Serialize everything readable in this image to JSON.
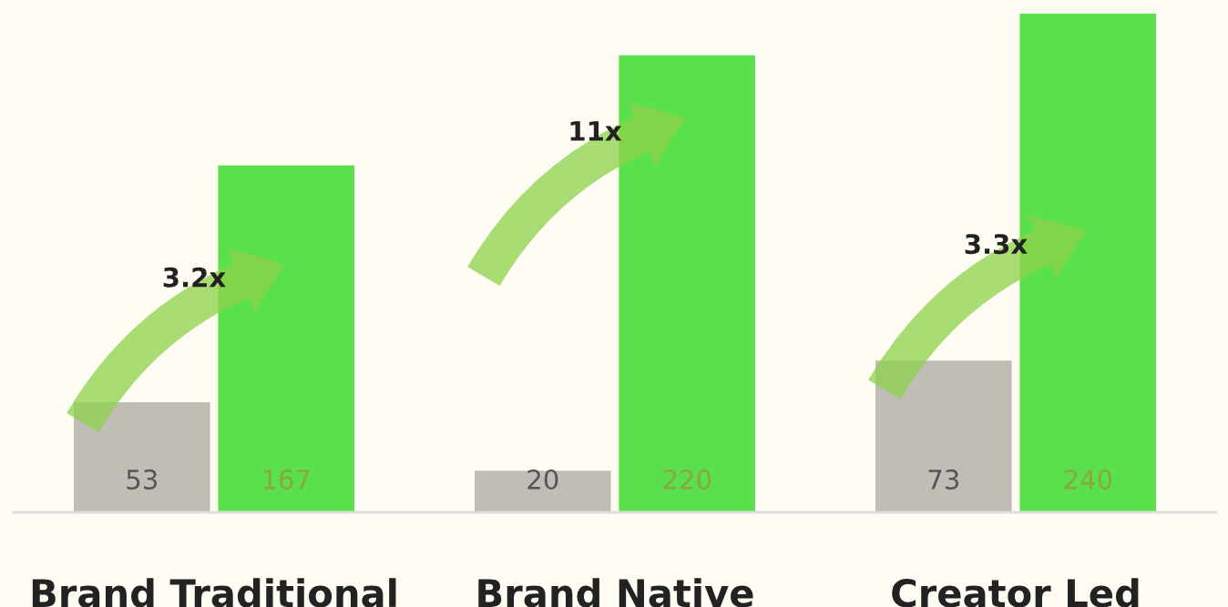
{
  "chart_data": {
    "type": "bar",
    "categories": [
      "Brand Traditional",
      "Brand Native",
      "Creator Led"
    ],
    "series": [
      {
        "color": "#bfbdb6",
        "values": [
          53,
          20,
          73
        ]
      },
      {
        "color": "#5ae04c",
        "values": [
          167,
          220,
          240
        ]
      }
    ],
    "data_labels": true,
    "grid": false,
    "legend": false,
    "annotations": [
      "3.2x",
      "11x",
      "3.3x"
    ]
  }
}
